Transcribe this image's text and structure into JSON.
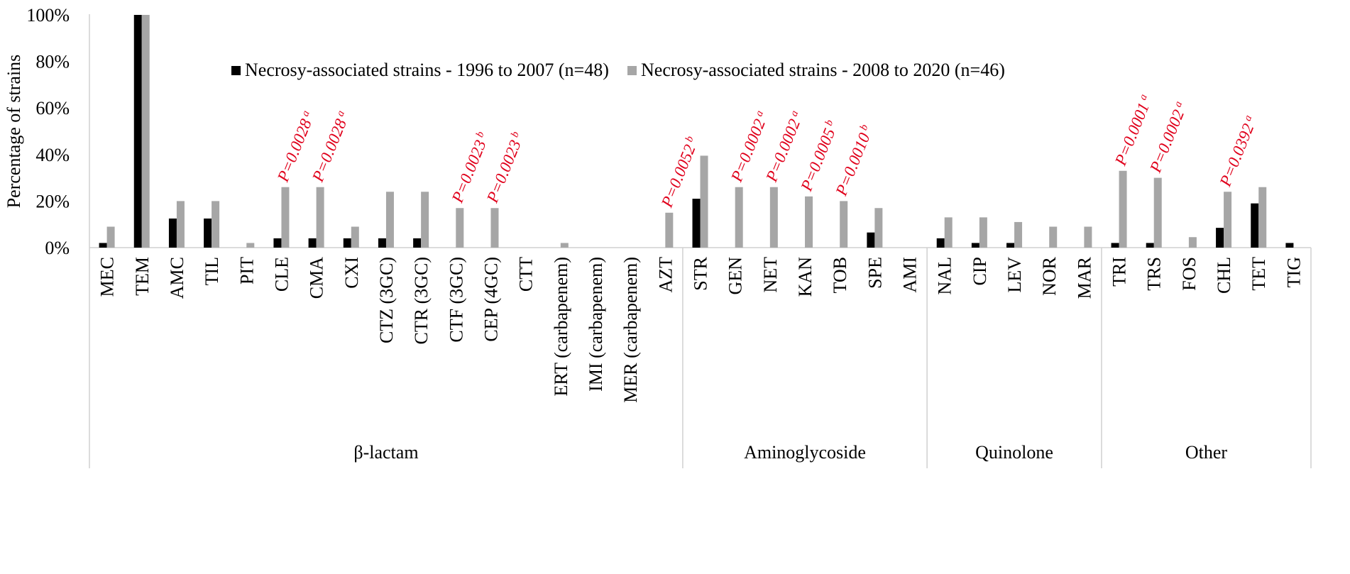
{
  "chart_data": {
    "type": "bar",
    "title": "",
    "xlabel": "",
    "ylabel": "Percentage of strains",
    "ylim": [
      0,
      100
    ],
    "yticks": [
      "0%",
      "20%",
      "40%",
      "60%",
      "80%",
      "100%"
    ],
    "yticks_values": [
      0,
      20,
      40,
      60,
      80,
      100
    ],
    "grid": false,
    "legend_position": "top-center",
    "categories": [
      "MEC",
      "TEM",
      "AMC",
      "TIL",
      "PIT",
      "CLE",
      "CMA",
      "CXI",
      "CTZ (3GC)",
      "CTR (3GC)",
      "CTF (3GC)",
      "CEP (4GC)",
      "CTT",
      "ERT (carbapenem)",
      "IMI (carbapenem)",
      "MER (carbapenem)",
      "AZT",
      "STR",
      "GEN",
      "NET",
      "KAN",
      "TOB",
      "SPE",
      "AMI",
      "NAL",
      "CIP",
      "LEV",
      "NOR",
      "MAR",
      "TRI",
      "TRS",
      "FOS",
      "CHL",
      "TET",
      "TIG"
    ],
    "series": [
      {
        "name": "Necrosy-associated strains - 1996 to 2007 (n=48)",
        "color": "#000000",
        "values": [
          2,
          100,
          12.5,
          12.5,
          0,
          4,
          4,
          4,
          4,
          4,
          0,
          0,
          0,
          0,
          0,
          0,
          0,
          21,
          0,
          0,
          0,
          0,
          6.5,
          0,
          4,
          2,
          2,
          0,
          0,
          2,
          2,
          0,
          8.5,
          19,
          2
        ]
      },
      {
        "name": "Necrosy-associated strains - 2008 to 2020 (n=46)",
        "color": "#a6a6a6",
        "values": [
          9,
          100,
          20,
          20,
          2,
          26,
          26,
          9,
          24,
          24,
          17,
          17,
          0,
          2,
          0,
          0,
          15,
          39.5,
          26,
          26,
          22,
          20,
          17,
          0,
          13,
          13,
          11,
          9,
          9,
          33,
          30,
          4.5,
          24,
          26,
          0
        ]
      }
    ],
    "groups": [
      {
        "label": "β-lactam",
        "start": 0,
        "end": 16
      },
      {
        "label": "Aminoglycoside",
        "start": 17,
        "end": 23
      },
      {
        "label": "Quinolone",
        "start": 24,
        "end": 28
      },
      {
        "label": "Other",
        "start": 29,
        "end": 34
      }
    ],
    "annotations": [
      {
        "category": "CLE",
        "text": "P=0.0028",
        "sup": "a"
      },
      {
        "category": "CMA",
        "text": "P=0.0028",
        "sup": "a"
      },
      {
        "category": "CTF (3GC)",
        "text": "P=0.0023",
        "sup": "b"
      },
      {
        "category": "CEP (4GC)",
        "text": "P=0.0023",
        "sup": "b"
      },
      {
        "category": "AZT",
        "text": "P=0.0052",
        "sup": "b"
      },
      {
        "category": "GEN",
        "text": "P=0.0002",
        "sup": "a"
      },
      {
        "category": "NET",
        "text": "P=0.0002",
        "sup": "a"
      },
      {
        "category": "KAN",
        "text": "P=0.0005",
        "sup": "b"
      },
      {
        "category": "TOB",
        "text": "P=0.0010",
        "sup": "b"
      },
      {
        "category": "TRI",
        "text": "P=0.0001",
        "sup": "a"
      },
      {
        "category": "TRS",
        "text": "P=0.0002",
        "sup": "a"
      },
      {
        "category": "CHL",
        "text": "P=0.0392",
        "sup": "a"
      }
    ],
    "annotation_color": "#e0001b",
    "axis_color": "#d0d0d0"
  }
}
